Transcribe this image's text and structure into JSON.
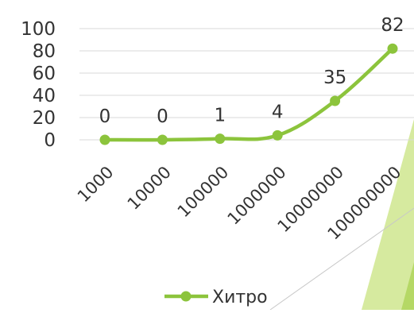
{
  "chart_data": {
    "type": "line",
    "title": "",
    "xlabel": "",
    "ylabel": "",
    "categories": [
      "1000",
      "10000",
      "100000",
      "1000000",
      "10000000",
      "100000000"
    ],
    "series": [
      {
        "name": "Хитро",
        "values": [
          0,
          0,
          1,
          4,
          35,
          82
        ],
        "data_labels": [
          "0",
          "0",
          "1",
          "4",
          "35",
          "82"
        ]
      }
    ],
    "y_ticks": [
      "0",
      "20",
      "40",
      "60",
      "80",
      "100"
    ],
    "ylim": [
      0,
      100
    ],
    "grid": true,
    "legend_position": "bottom",
    "smooth": true,
    "colors": {
      "series": "#8cc43c",
      "grid": "#d9d9d9",
      "text": "#333333",
      "decor_light": "#d6ea9f",
      "decor_mid": "#b5d865"
    }
  }
}
